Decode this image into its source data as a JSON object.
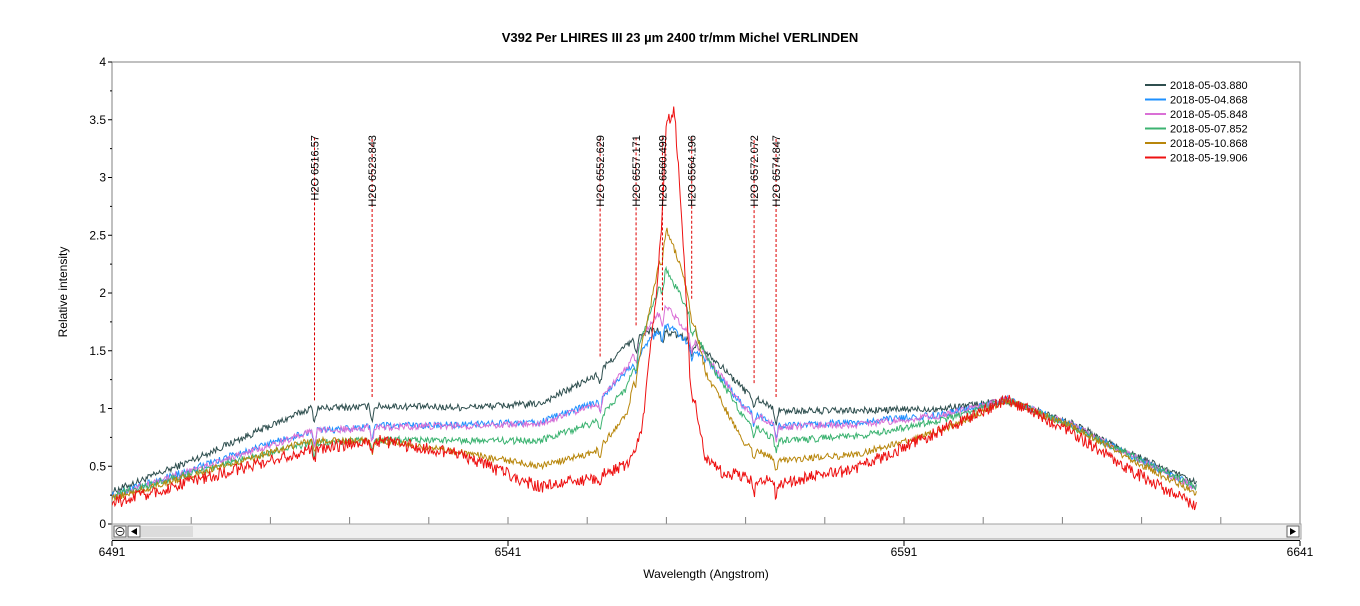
{
  "chart_data": {
    "type": "line",
    "title": "V392 Per   LHIRES III 23 µm 2400 tr/mm   Michel VERLINDEN",
    "xlabel": "Wavelength (Angstrom)",
    "ylabel": "Relative intensity",
    "xlim": [
      6491,
      6641
    ],
    "ylim": [
      0,
      4
    ],
    "x_ticks": [
      "6491",
      "6541",
      "6591",
      "6641"
    ],
    "y_ticks": [
      "0",
      "0.5",
      "1",
      "1.5",
      "2",
      "2.5",
      "3",
      "3.5",
      "4"
    ],
    "legend_position": "top-right",
    "series": [
      {
        "name": "2018-05-03.880",
        "color": "#2f4f4f",
        "x": [
          6491,
          6500,
          6511,
          6516,
          6525,
          6535,
          6545,
          6552,
          6556,
          6559,
          6561,
          6563,
          6566,
          6571,
          6575,
          6585,
          6596,
          6604,
          6612,
          6620,
          6628
        ],
        "y": [
          0.28,
          0.52,
          0.85,
          1.0,
          1.02,
          1.01,
          1.04,
          1.28,
          1.55,
          1.68,
          1.66,
          1.62,
          1.5,
          1.15,
          0.98,
          0.98,
          1.0,
          1.07,
          0.88,
          0.6,
          0.35
        ]
      },
      {
        "name": "2018-05-04.868",
        "color": "#1e90ff",
        "x": [
          6491,
          6500,
          6511,
          6516,
          6525,
          6535,
          6545,
          6552,
          6556,
          6559,
          6561,
          6563,
          6566,
          6571,
          6575,
          6585,
          6596,
          6604,
          6612,
          6620,
          6628
        ],
        "y": [
          0.25,
          0.45,
          0.7,
          0.8,
          0.85,
          0.86,
          0.88,
          1.05,
          1.32,
          1.6,
          1.72,
          1.62,
          1.42,
          1.0,
          0.85,
          0.88,
          0.95,
          1.08,
          0.86,
          0.58,
          0.32
        ]
      },
      {
        "name": "2018-05-05.848",
        "color": "#da70d6",
        "x": [
          6491,
          6500,
          6511,
          6516,
          6525,
          6535,
          6545,
          6552,
          6556,
          6559,
          6561,
          6563,
          6566,
          6571,
          6575,
          6585,
          6596,
          6604,
          6612,
          6620,
          6628
        ],
        "y": [
          0.24,
          0.44,
          0.68,
          0.8,
          0.84,
          0.85,
          0.87,
          1.03,
          1.35,
          1.75,
          1.88,
          1.72,
          1.45,
          1.0,
          0.84,
          0.86,
          0.94,
          1.08,
          0.86,
          0.58,
          0.31
        ]
      },
      {
        "name": "2018-05-07.852",
        "color": "#3cb371",
        "x": [
          6491,
          6500,
          6511,
          6516,
          6525,
          6535,
          6545,
          6552,
          6556,
          6559,
          6561,
          6563,
          6566,
          6571,
          6575,
          6585,
          6596,
          6604,
          6612,
          6620,
          6628
        ],
        "y": [
          0.25,
          0.42,
          0.62,
          0.7,
          0.73,
          0.72,
          0.72,
          0.88,
          1.18,
          1.85,
          2.2,
          1.95,
          1.45,
          0.9,
          0.72,
          0.76,
          0.9,
          1.08,
          0.85,
          0.58,
          0.32
        ]
      },
      {
        "name": "2018-05-10.868",
        "color": "#b8860b",
        "x": [
          6491,
          6500,
          6511,
          6516,
          6525,
          6535,
          6545,
          6552,
          6556,
          6559,
          6561,
          6563,
          6566,
          6571,
          6575,
          6585,
          6596,
          6604,
          6612,
          6620,
          6628
        ],
        "y": [
          0.22,
          0.4,
          0.62,
          0.72,
          0.72,
          0.62,
          0.5,
          0.62,
          0.95,
          1.9,
          2.55,
          2.2,
          1.3,
          0.68,
          0.55,
          0.6,
          0.82,
          1.07,
          0.85,
          0.55,
          0.26
        ]
      },
      {
        "name": "2018-05-19.906",
        "color": "#ee1111",
        "x": [
          6491,
          6500,
          6511,
          6516,
          6525,
          6535,
          6545,
          6552,
          6556,
          6558,
          6560,
          6561,
          6562,
          6563,
          6564,
          6566,
          6568,
          6575,
          6585,
          6596,
          6604,
          6612,
          6620,
          6628
        ],
        "y": [
          0.18,
          0.35,
          0.55,
          0.65,
          0.72,
          0.6,
          0.32,
          0.4,
          0.52,
          0.85,
          2.2,
          3.45,
          3.6,
          2.6,
          1.3,
          0.55,
          0.45,
          0.35,
          0.48,
          0.82,
          1.08,
          0.8,
          0.45,
          0.15
        ]
      }
    ],
    "annotations": [
      {
        "label": "H2O 6516.57",
        "x": 6516.57,
        "y_from": 1.07,
        "y_to": 3.35
      },
      {
        "label": "H2O 6523.843",
        "x": 6523.843,
        "y_from": 1.1,
        "y_to": 3.35
      },
      {
        "label": "H2O 6552.629",
        "x": 6552.629,
        "y_from": 1.45,
        "y_to": 3.35
      },
      {
        "label": "H2O 6557.171",
        "x": 6557.171,
        "y_from": 1.72,
        "y_to": 3.35
      },
      {
        "label": "H2O 6560.499",
        "x": 6560.499,
        "y_from": 1.85,
        "y_to": 3.35
      },
      {
        "label": "H2O 6564.196",
        "x": 6564.196,
        "y_from": 1.95,
        "y_to": 3.35
      },
      {
        "label": "H2O 6572.072",
        "x": 6572.072,
        "y_from": 1.22,
        "y_to": 3.35
      },
      {
        "label": "H2O 6574.847",
        "x": 6574.847,
        "y_from": 1.1,
        "y_to": 3.35
      }
    ]
  },
  "scrollbar": {
    "zoom_icon": "zoom-out-icon",
    "left_arrow_icon": "left-arrow-icon",
    "right_arrow_icon": "right-arrow-icon"
  }
}
